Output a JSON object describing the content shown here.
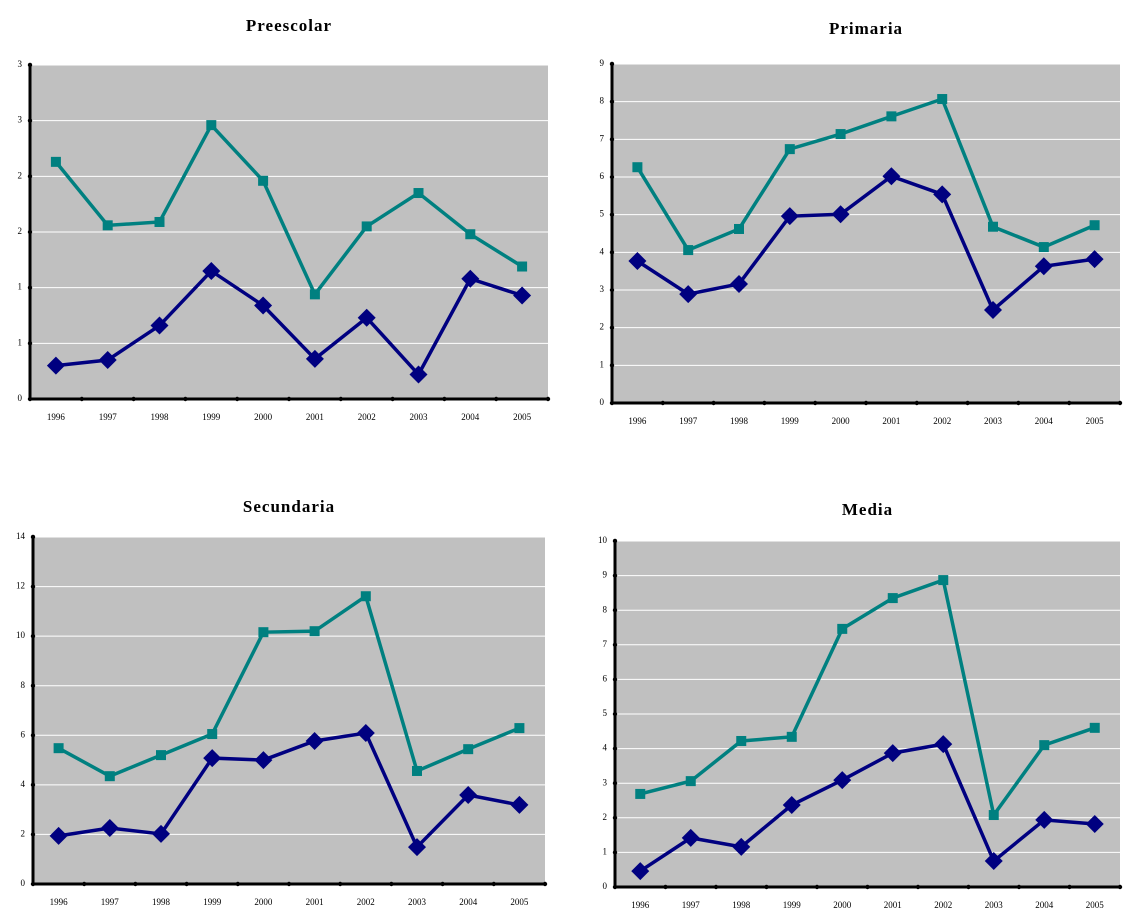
{
  "chart_data": [
    {
      "type": "line",
      "title": "Preescolar",
      "categories": [
        "1996",
        "1997",
        "1998",
        "1999",
        "2000",
        "2001",
        "2002",
        "2003",
        "2004",
        "2005"
      ],
      "series": [
        {
          "color": "#008080",
          "marker": "square",
          "values": [
            2.13,
            1.56,
            1.59,
            2.46,
            1.96,
            0.94,
            1.55,
            1.85,
            1.48,
            1.19
          ]
        },
        {
          "color": "#000080",
          "marker": "diamond",
          "values": [
            0.3,
            0.35,
            0.66,
            1.15,
            0.84,
            0.36,
            0.73,
            0.22,
            1.08,
            0.93
          ]
        }
      ],
      "ylim": [
        0,
        3
      ],
      "yticks": [
        0,
        {
          "value": 0.5,
          "label": "1"
        },
        1,
        {
          "value": 1.5,
          "label": "2"
        },
        2,
        {
          "value": 2.5,
          "label": "3"
        },
        3
      ],
      "grid": true
    },
    {
      "type": "line",
      "title": "Primaria",
      "categories": [
        "1996",
        "1997",
        "1998",
        "1999",
        "2000",
        "2001",
        "2002",
        "2003",
        "2004",
        "2005"
      ],
      "series": [
        {
          "color": "#008080",
          "marker": "square",
          "values": [
            6.26,
            4.06,
            4.62,
            6.74,
            7.14,
            7.61,
            8.07,
            4.68,
            4.14,
            4.72
          ]
        },
        {
          "color": "#000080",
          "marker": "diamond",
          "values": [
            3.77,
            2.89,
            3.16,
            4.96,
            5.01,
            6.02,
            5.54,
            2.47,
            3.63,
            3.82
          ]
        }
      ],
      "ylim": [
        0,
        9
      ],
      "yticks": [
        0,
        1,
        2,
        3,
        4,
        5,
        6,
        7,
        8,
        9
      ],
      "grid": true
    },
    {
      "type": "line",
      "title": "Secundaria",
      "categories": [
        "1996",
        "1997",
        "1998",
        "1999",
        "2000",
        "2001",
        "2002",
        "2003",
        "2004",
        "2005"
      ],
      "series": [
        {
          "color": "#008080",
          "marker": "square",
          "values": [
            5.48,
            4.35,
            5.2,
            6.05,
            10.16,
            10.2,
            11.61,
            4.56,
            5.44,
            6.29
          ]
        },
        {
          "color": "#000080",
          "marker": "diamond",
          "values": [
            1.94,
            2.26,
            2.02,
            5.08,
            5.0,
            5.77,
            6.09,
            1.49,
            3.59,
            3.19
          ]
        }
      ],
      "ylim": [
        0,
        14
      ],
      "yticks": [
        0,
        2,
        4,
        6,
        8,
        10,
        12,
        14
      ],
      "grid": true
    },
    {
      "type": "line",
      "title": "Media",
      "categories": [
        "1996",
        "1997",
        "1998",
        "1999",
        "2000",
        "2001",
        "2002",
        "2003",
        "2004",
        "2005"
      ],
      "series": [
        {
          "color": "#008080",
          "marker": "square",
          "values": [
            2.69,
            3.06,
            4.22,
            4.34,
            7.46,
            8.35,
            8.87,
            2.08,
            4.1,
            4.6
          ]
        },
        {
          "color": "#000080",
          "marker": "diamond",
          "values": [
            0.46,
            1.42,
            1.16,
            2.37,
            3.09,
            3.87,
            4.13,
            0.75,
            1.94,
            1.82
          ]
        }
      ],
      "ylim": [
        0,
        10
      ],
      "yticks": [
        0,
        1,
        2,
        3,
        4,
        5,
        6,
        7,
        8,
        9,
        10
      ],
      "grid": true
    }
  ]
}
